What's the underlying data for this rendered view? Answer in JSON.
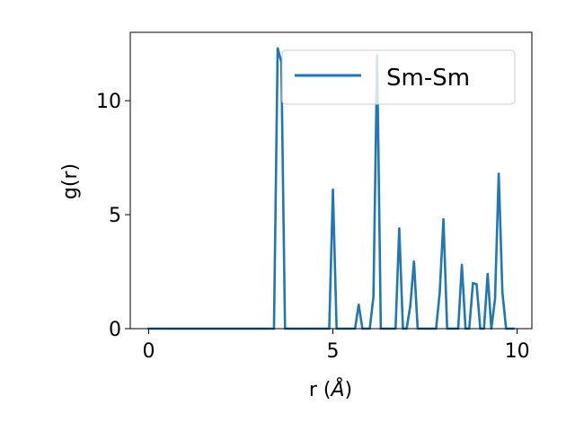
{
  "chart_data": {
    "type": "line",
    "xlabel_main": "r (",
    "xlabel_unit": "Å",
    "xlabel_close": ")",
    "ylabel": "g(r)",
    "xlim": [
      -0.5,
      10.4
    ],
    "ylim": [
      0,
      13.0
    ],
    "x_ticks": [
      0,
      5,
      10
    ],
    "y_ticks": [
      0,
      5,
      10
    ],
    "x_tick_labels": [
      "0",
      "5",
      "10"
    ],
    "y_tick_labels": [
      "0",
      "5",
      "10"
    ],
    "grid": false,
    "legend_position": "top-right",
    "series": [
      {
        "name": "Sm-Sm",
        "color": "#1f77b4",
        "x": [
          0,
          1,
          2,
          3,
          3.4,
          3.5,
          3.6,
          3.7,
          4.0,
          4.5,
          4.9,
          5.0,
          5.1,
          5.3,
          5.6,
          5.7,
          5.8,
          6.0,
          6.1,
          6.2,
          6.3,
          6.5,
          6.7,
          6.8,
          6.9,
          7.0,
          7.1,
          7.2,
          7.3,
          7.5,
          7.8,
          7.9,
          8.0,
          8.1,
          8.2,
          8.4,
          8.5,
          8.6,
          8.7,
          8.8,
          8.9,
          9.0,
          9.1,
          9.2,
          9.3,
          9.4,
          9.5,
          9.6,
          9.7,
          9.9
        ],
        "y": [
          0,
          0,
          0,
          0,
          0,
          12.3,
          11.7,
          0,
          0,
          0,
          0,
          6.1,
          0,
          0,
          0,
          1.05,
          0,
          0,
          1.4,
          12.0,
          0,
          0,
          0,
          4.4,
          0,
          0,
          1.0,
          2.95,
          0,
          0,
          0,
          1.6,
          4.8,
          0,
          0,
          0,
          2.8,
          0,
          0,
          2.0,
          1.95,
          0,
          0,
          2.4,
          0,
          1.3,
          6.8,
          1.6,
          0,
          0
        ]
      }
    ]
  }
}
